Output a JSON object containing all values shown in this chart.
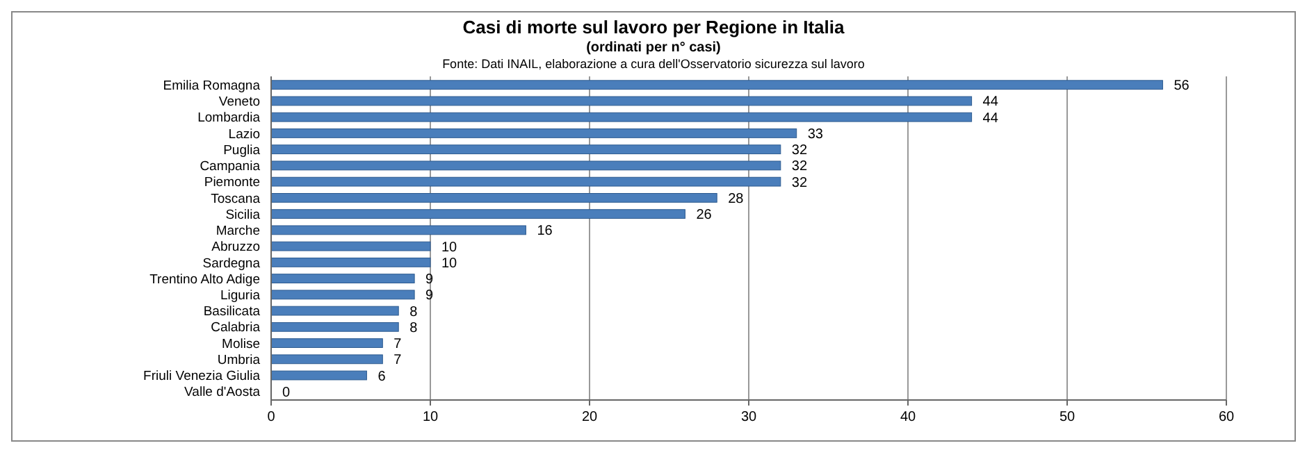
{
  "chart_data": {
    "type": "bar",
    "orientation": "horizontal",
    "title": "Casi di morte sul lavoro per Regione in Italia",
    "subtitle": "(ordinati per n° casi)",
    "annotations": [
      "Fonte: Dati INAIL, elaborazione a cura dell'Osservatorio sicurezza sul lavoro"
    ],
    "categories": [
      "Emilia Romagna",
      "Veneto",
      "Lombardia",
      "Lazio",
      "Puglia",
      "Campania",
      "Piemonte",
      "Toscana",
      "Sicilia",
      "Marche",
      "Abruzzo",
      "Sardegna",
      "Trentino Alto Adige",
      "Liguria",
      "Basilicata",
      "Calabria",
      "Molise",
      "Umbria",
      "Friuli Venezia Giulia",
      "Valle d'Aosta"
    ],
    "values": [
      56,
      44,
      44,
      33,
      32,
      32,
      32,
      28,
      26,
      16,
      10,
      10,
      9,
      9,
      8,
      8,
      7,
      7,
      6,
      0
    ],
    "color": "#4a7ebb",
    "xlim": [
      0,
      60
    ],
    "xticks": [
      0,
      10,
      20,
      30,
      40,
      50,
      60
    ],
    "grid": "x",
    "data_labels": true
  }
}
